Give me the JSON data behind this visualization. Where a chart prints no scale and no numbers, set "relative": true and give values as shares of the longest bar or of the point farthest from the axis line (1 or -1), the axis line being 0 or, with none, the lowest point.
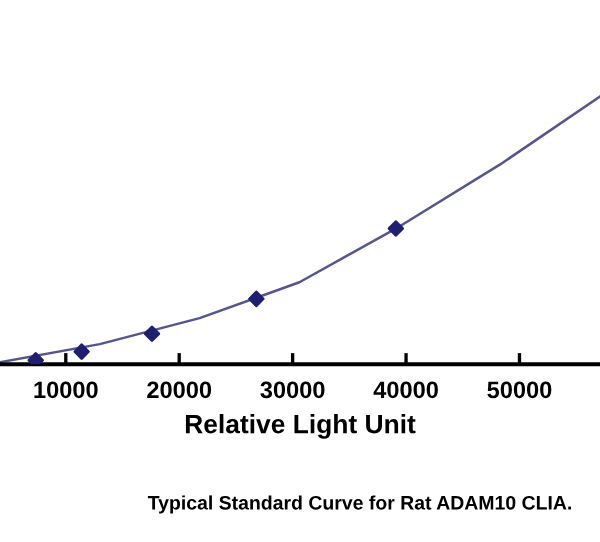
{
  "chart_data": {
    "type": "scatter",
    "relative": true,
    "xlabel": "Relative Light Unit",
    "annotations": [
      "Typical Standard Curve for Rat ADAM10 CLIA."
    ],
    "xlim": [
      4200,
      57100
    ],
    "xticks": [
      10000,
      20000,
      30000,
      40000,
      50000
    ],
    "grid": false,
    "legend": false,
    "series": [
      {
        "color": "#1f1f6e",
        "marker": "diamond",
        "x": [
          7350,
          11400,
          17600,
          26800,
          39100
        ],
        "values": [
          0.015,
          0.047,
          0.114,
          0.244,
          0.507
        ]
      },
      {
        "type": "line",
        "color": "#55558f",
        "marker": "none",
        "line_style": "solid",
        "x": [
          4200,
          13000,
          21800,
          30600,
          39450,
          48300,
          57100
        ],
        "values": [
          0.007,
          0.075,
          0.172,
          0.306,
          0.515,
          0.746,
          1
        ]
      }
    ]
  }
}
